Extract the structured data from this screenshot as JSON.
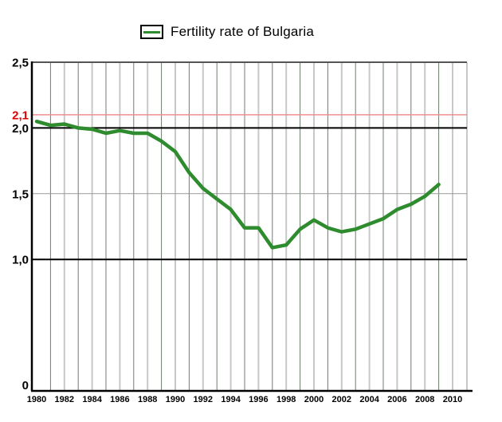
{
  "legend": {
    "label": "Fertility rate of Bulgaria"
  },
  "colors": {
    "line": "#2e8b2e",
    "reference_line": "#f08f8f",
    "reference_label": "#dd0000",
    "grid_dark": "#6f7b6f",
    "grid_light": "#c8c8c8",
    "grid_mid": "#999999",
    "plot_border": "#555555",
    "axis": "#000000",
    "tick_text": "#000000"
  },
  "chart_data": {
    "type": "line",
    "title": "Fertility rate of Bulgaria",
    "series_name": "Fertility rate of Bulgaria",
    "x": [
      1980,
      1981,
      1982,
      1983,
      1984,
      1985,
      1986,
      1987,
      1988,
      1989,
      1990,
      1991,
      1992,
      1993,
      1994,
      1995,
      1996,
      1997,
      1998,
      1999,
      2000,
      2001,
      2002,
      2003,
      2004,
      2005,
      2006,
      2007,
      2008,
      2009
    ],
    "values": [
      2.05,
      2.02,
      2.03,
      2.0,
      1.99,
      1.96,
      1.98,
      1.96,
      1.96,
      1.9,
      1.82,
      1.66,
      1.54,
      1.46,
      1.38,
      1.24,
      1.24,
      1.09,
      1.11,
      1.23,
      1.3,
      1.24,
      1.21,
      1.23,
      1.27,
      1.31,
      1.38,
      1.42,
      1.48,
      1.57
    ],
    "xlabel": "",
    "ylabel": "",
    "xlim": [
      1980,
      2011
    ],
    "ylim": [
      0,
      2.5
    ],
    "grid": true,
    "legend_position": "top-center",
    "x_ticks": [
      "1980",
      "1982",
      "1984",
      "1986",
      "1988",
      "1990",
      "1992",
      "1994",
      "1996",
      "1998",
      "2000",
      "2002",
      "2004",
      "2006",
      "2008",
      "2010"
    ],
    "y_ticks": [
      {
        "value": 2.5,
        "label": "2,5",
        "color": "#000000"
      },
      {
        "value": 2.1,
        "label": "2,1",
        "color": "#dd0000"
      },
      {
        "value": 2.0,
        "label": "2,0",
        "color": "#000000"
      },
      {
        "value": 1.5,
        "label": "1,5",
        "color": "#000000"
      },
      {
        "value": 1.0,
        "label": "1,0",
        "color": "#000000"
      },
      {
        "value": 0,
        "label": "0",
        "color": "#000000"
      }
    ],
    "reference_line": {
      "value": 2.1,
      "label": "2,1"
    },
    "solid_black_gridlines_y": [
      2.0,
      1.0
    ],
    "thin_gray_gridlines_y": [
      1.5
    ]
  }
}
